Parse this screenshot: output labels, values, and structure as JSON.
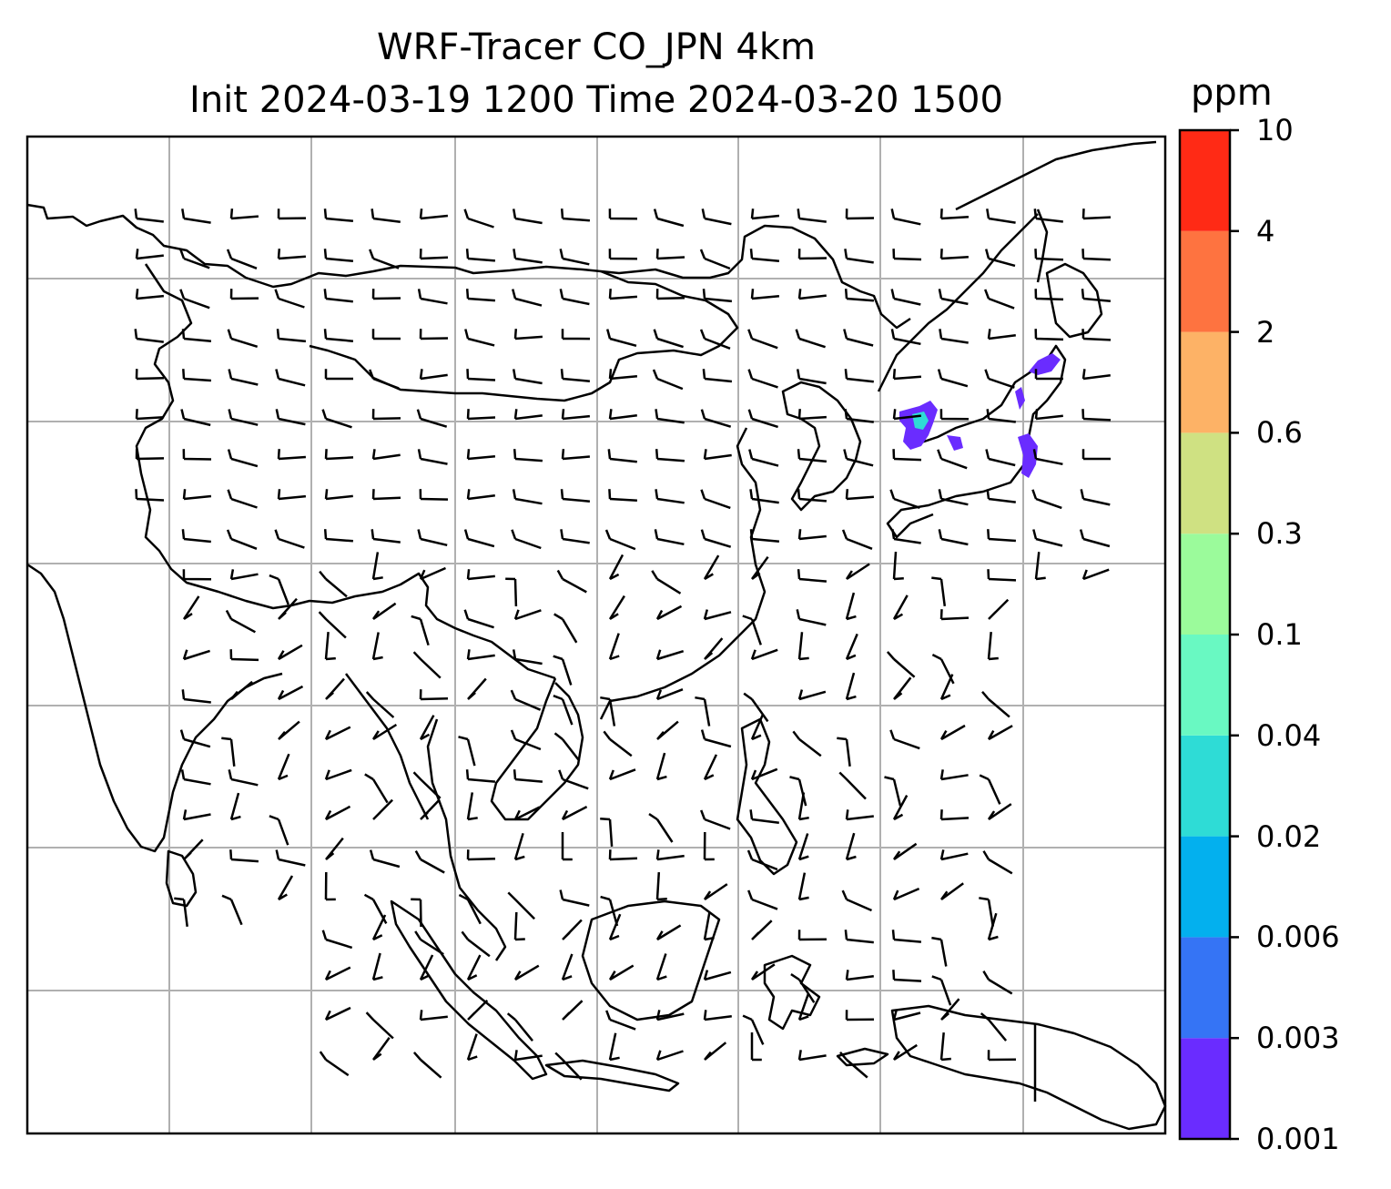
{
  "title": {
    "line1": "WRF-Tracer CO_JPN 4km",
    "line2": "Init 2024-03-19 1200 Time 2024-03-20 1500"
  },
  "colorbar": {
    "unit": "ppm",
    "levels": [
      "0.001",
      "0.003",
      "0.006",
      "0.02",
      "0.04",
      "0.1",
      "0.3",
      "0.6",
      "2",
      "4",
      "10"
    ],
    "colors": [
      "#6a2cff",
      "#3574f5",
      "#03b0ee",
      "#2edcd6",
      "#69f9c2",
      "#9bfb9b",
      "#cfe182",
      "#fdb266",
      "#fe7340",
      "#ff2a15"
    ]
  },
  "map": {
    "region": "East and Southeast Asia",
    "features": [
      "coastlines",
      "country borders",
      "lat/lon gridlines",
      "wind barbs",
      "CO tracer concentration"
    ],
    "tracer_color": "#6a2cff"
  }
}
